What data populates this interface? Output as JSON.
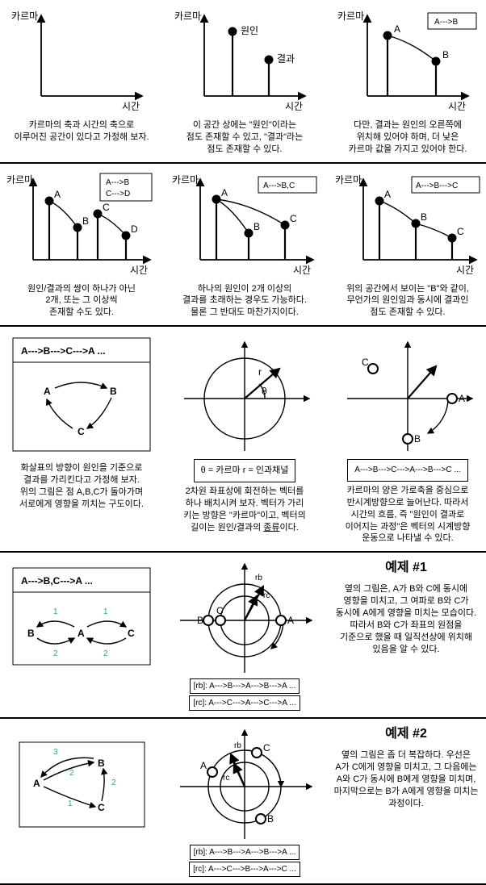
{
  "axis": {
    "y": "카르마",
    "x": "시간"
  },
  "row1": {
    "cap1": "카르마의 축과 시간의 축으로\n이루어진 공간이 있다고 가정해 보자.",
    "p2_cause": "원인",
    "p2_effect": "결과",
    "cap2": "이 공간 상에는 \"원인\"이라는\n점도 존재할 수 있고, \"결과\"라는\n점도 존재할 수 있다.",
    "badge3": "A--->B",
    "p3_A": "A",
    "p3_B": "B",
    "cap3": "다만, 결과는 원인의 오른쪽에\n위치해 있어야 하며, 더 낮은\n카르마 값을 가지고 있어야 한다."
  },
  "row2": {
    "badge1a": "A--->B",
    "badge1b": "C--->D",
    "A": "A",
    "B": "B",
    "C": "C",
    "D": "D",
    "cap1": "원인/결과의 쌍이 하나가 아닌\n2개, 또는 그 이상씩\n존재할 수도 있다.",
    "badge2": "A--->B,C",
    "cap2": "하나의 원인이 2개 이상의\n결과를 초래하는 경우도 가능하다.\n물론 그 반대도 마찬가지이다.",
    "badge3": "A--->B--->C",
    "cap3": "위의 공간에서 보이는 \"B\"와 같이,\n무언가의 원인임과 동시에 결과인\n점도 존재할 수 있다."
  },
  "row3": {
    "box1_head": "A--->B--->C--->A ...",
    "cap1": "화살표의 방향이 원인을 기준으로\n결과를 가리킨다고 가정해 보자.\n위의 그림은 점 A,B,C가 돌아가며\n서로에게 영향을 끼치는 구도이다.",
    "theta": "θ",
    "rlabel": "r",
    "legend2": "θ = 카르마      r = 인과채널",
    "cap2": "2차원 좌표상에 회전하는 벡터를\n하나 배치시켜 보자. 벡터가 가리\n키는 방향은 \"카르마\"이고, 벡터의\n길이는 원인/결과의 종류이다.",
    "cap2_emph": "종류",
    "legend3": "A--->B--->C--->A--->B--->C ...",
    "cap3": "카르마의 양은 가로축을 중심으로\n반시계방향으로 늘어난다. 따라서\n시간의 흐름, 즉 \"원인이 결과로\n이어지는 과정\"은 벡터의 시계방향\n운동으로 나타낼 수 있다."
  },
  "ex1": {
    "box_head": "A--->B,C--->A ...",
    "rb": "rb",
    "rc": "rc",
    "seq_rb": "[rb]: A--->B--->A--->B--->A ...",
    "seq_rc": "[rc]: A--->C--->A--->C--->A ...",
    "title": "예제 #1",
    "text": "옆의 그림은, A가 B와 C에 동시에\n영향을 미치고, 그 여파로 B와 C가\n동시에 A에게 영향을 미치는 모습이다.\n따라서 B와 C가 좌표의 원점을\n기준으로 했을 때 일직선상에 위치해\n있음을 알 수 있다.",
    "n1": "1",
    "n2": "2"
  },
  "ex2": {
    "rb": "rb",
    "rc": "rc",
    "seq_rb": "[rb]: A--->B--->A--->B--->A ...",
    "seq_rc": "[rc]: A--->C--->B--->A--->C ...",
    "title": "예제 #2",
    "text": "옆의 그림은 좀 더 복잡하다. 우선은\nA가 C에게 영향을 미치고, 그 다음에는\nA와 C가 동시에 B에게 영향을 미치며,\n마지막으로는 B가 A에게 영향을 미치는\n과정이다.",
    "n1": "1",
    "n2": "2",
    "n3": "3"
  }
}
